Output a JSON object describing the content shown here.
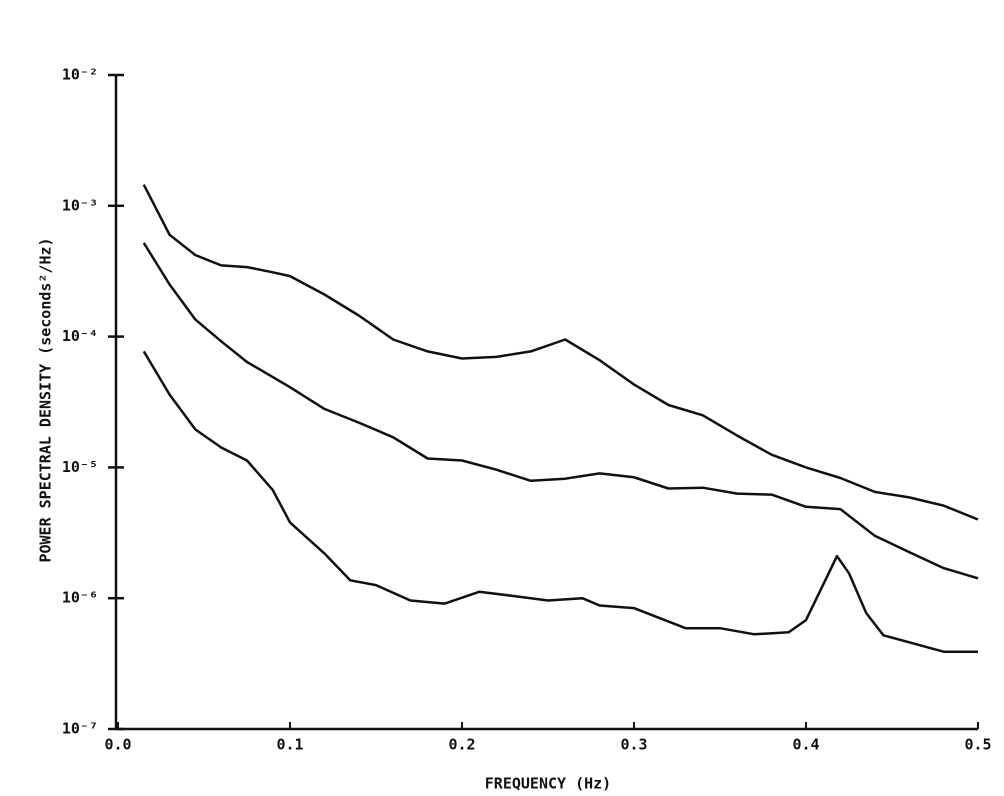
{
  "chart_data": {
    "type": "line",
    "x_label": "FREQUENCY (Hz)",
    "y_label": "POWER SPECTRAL DENSITY (seconds²/Hz)",
    "xlim": [
      0,
      0.5
    ],
    "xticks": [
      {
        "value": 0,
        "label": "0.0"
      },
      0.1,
      0.2,
      0.3,
      0.4,
      0.5
    ],
    "ylim": [
      1e-07,
      0.01
    ],
    "ylog": true,
    "yticks": [
      {
        "value": 1e-07,
        "label": "10⁻⁷"
      },
      {
        "value": 1e-06,
        "label": "10⁻⁶"
      },
      {
        "value": 1e-05,
        "label": "10⁻⁵"
      },
      {
        "value": 0.0001,
        "label": "10⁻⁴"
      },
      {
        "value": 0.001,
        "label": "10⁻³"
      },
      {
        "value": 0.01,
        "label": "10⁻²"
      }
    ],
    "grid": false,
    "series": [
      {
        "color": "#111",
        "x": [
          0.015,
          0.03,
          0.045,
          0.06,
          0.075,
          0.09,
          0.1,
          0.12,
          0.14,
          0.16,
          0.18,
          0.2,
          0.22,
          0.24,
          0.26,
          0.28,
          0.3,
          0.32,
          0.34,
          0.36,
          0.38,
          0.4,
          0.42,
          0.44,
          0.46,
          0.48,
          0.5
        ],
        "values": [
          0.00145,
          0.0006,
          0.00042,
          0.00035,
          0.00034,
          0.00031,
          0.00029,
          0.00021,
          0.000145,
          9.5e-05,
          7.7e-05,
          6.8e-05,
          7e-05,
          7.7e-05,
          9.5e-05,
          6.6e-05,
          4.3e-05,
          3e-05,
          2.5e-05,
          1.75e-05,
          1.25e-05,
          1e-05,
          8.3e-06,
          6.5e-06,
          5.9e-06,
          5.1e-06,
          4e-06
        ]
      },
      {
        "color": "#111",
        "x": [
          0.015,
          0.03,
          0.045,
          0.06,
          0.075,
          0.09,
          0.1,
          0.12,
          0.14,
          0.16,
          0.18,
          0.2,
          0.22,
          0.24,
          0.26,
          0.28,
          0.3,
          0.32,
          0.34,
          0.36,
          0.38,
          0.4,
          0.42,
          0.44,
          0.46,
          0.48,
          0.5
        ],
        "values": [
          0.00052,
          0.00025,
          0.000135,
          9.2e-05,
          6.4e-05,
          4.9e-05,
          4.1e-05,
          2.8e-05,
          2.2e-05,
          1.7e-05,
          1.17e-05,
          1.13e-05,
          9.6e-06,
          7.9e-06,
          8.2e-06,
          9e-06,
          8.4e-06,
          6.9e-06,
          7e-06,
          6.3e-06,
          6.2e-06,
          5e-06,
          4.8e-06,
          3e-06,
          2.25e-06,
          1.7e-06,
          1.42e-06
        ]
      },
      {
        "color": "#111",
        "x": [
          0.015,
          0.03,
          0.045,
          0.06,
          0.075,
          0.09,
          0.1,
          0.12,
          0.135,
          0.15,
          0.17,
          0.19,
          0.21,
          0.23,
          0.25,
          0.27,
          0.28,
          0.3,
          0.33,
          0.35,
          0.37,
          0.39,
          0.4,
          0.418,
          0.425,
          0.435,
          0.445,
          0.46,
          0.48,
          0.5
        ],
        "values": [
          7.7e-05,
          3.6e-05,
          1.95e-05,
          1.42e-05,
          1.13e-05,
          6.7e-06,
          3.8e-06,
          2.2e-06,
          1.37e-06,
          1.26e-06,
          9.6e-07,
          9.1e-07,
          1.12e-06,
          1.04e-06,
          9.6e-07,
          1e-06,
          8.8e-07,
          8.4e-07,
          5.9e-07,
          5.9e-07,
          5.3e-07,
          5.5e-07,
          6.8e-07,
          2.1e-06,
          1.55e-06,
          7.7e-07,
          5.2e-07,
          4.6e-07,
          3.9e-07,
          3.9e-07
        ]
      }
    ]
  }
}
